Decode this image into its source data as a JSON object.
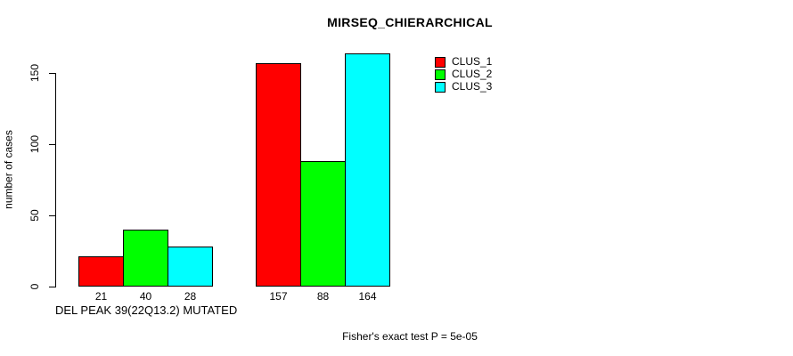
{
  "figure": {
    "background": "#ffffff",
    "text_color": "#000000"
  },
  "chart_data": {
    "type": "bar",
    "title": "MIRSEQ_CHIERARCHICAL",
    "xlabel": "DEL PEAK 39(22Q13.2) MUTATED",
    "ylabel": "number of cases",
    "footnote": "Fisher's exact test P = 5e-05",
    "categories": [
      "",
      ""
    ],
    "series": [
      {
        "name": "CLUS_1",
        "color": "#ff0000",
        "values": [
          21,
          157
        ]
      },
      {
        "name": "CLUS_2",
        "color": "#00ff00",
        "values": [
          40,
          88
        ]
      },
      {
        "name": "CLUS_3",
        "color": "#00ffff",
        "values": [
          28,
          164
        ]
      }
    ],
    "bar_value_labels": [
      [
        "21",
        "40",
        "28"
      ],
      [
        "157",
        "88",
        "164"
      ]
    ],
    "yticks": [
      0,
      50,
      100,
      150
    ],
    "ylim": [
      0,
      150
    ],
    "grid": false,
    "bar_border_color": "#000000",
    "legend": {
      "position": "top-right",
      "entries": [
        "CLUS_1",
        "CLUS_2",
        "CLUS_3"
      ]
    }
  }
}
